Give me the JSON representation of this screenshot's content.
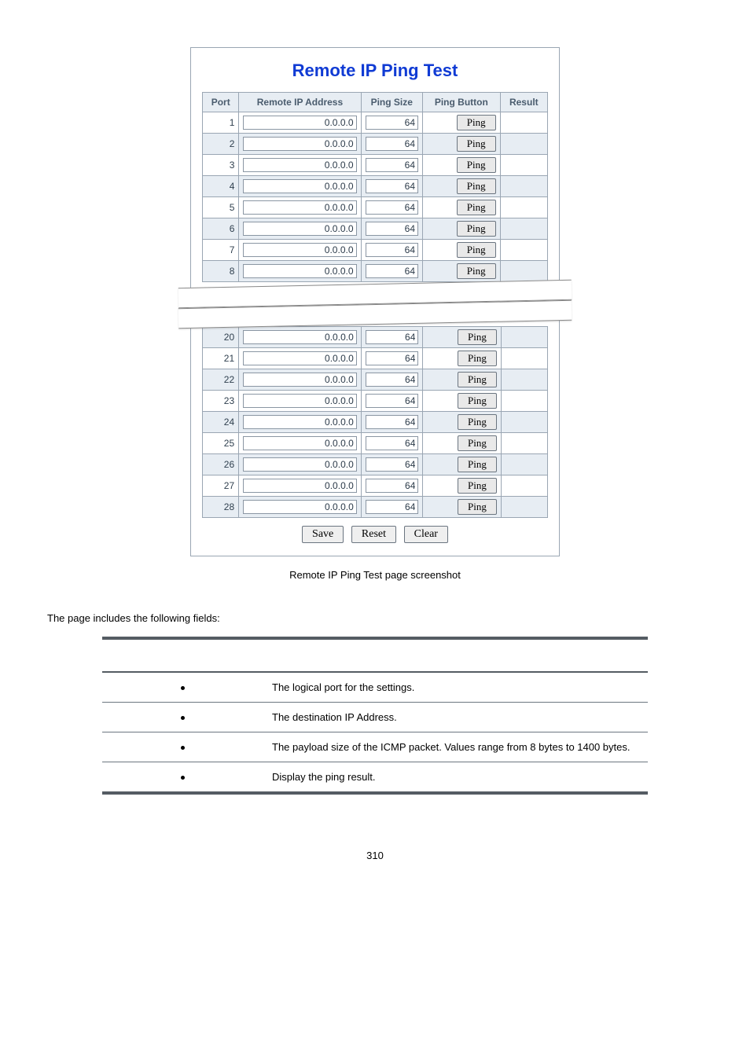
{
  "panel": {
    "title": "Remote IP Ping Test",
    "columns": [
      "Port",
      "Remote IP Address",
      "Ping Size",
      "Ping Button",
      "Result"
    ],
    "ping_label": "Ping",
    "rows_top": [
      {
        "port": "1",
        "ip": "0.0.0.0",
        "size": "64"
      },
      {
        "port": "2",
        "ip": "0.0.0.0",
        "size": "64"
      },
      {
        "port": "3",
        "ip": "0.0.0.0",
        "size": "64"
      },
      {
        "port": "4",
        "ip": "0.0.0.0",
        "size": "64"
      },
      {
        "port": "5",
        "ip": "0.0.0.0",
        "size": "64"
      },
      {
        "port": "6",
        "ip": "0.0.0.0",
        "size": "64"
      },
      {
        "port": "7",
        "ip": "0.0.0.0",
        "size": "64"
      },
      {
        "port": "8",
        "ip": "0.0.0.0",
        "size": "64"
      }
    ],
    "rows_bottom": [
      {
        "port": "20",
        "ip": "0.0.0.0",
        "size": "64"
      },
      {
        "port": "21",
        "ip": "0.0.0.0",
        "size": "64"
      },
      {
        "port": "22",
        "ip": "0.0.0.0",
        "size": "64"
      },
      {
        "port": "23",
        "ip": "0.0.0.0",
        "size": "64"
      },
      {
        "port": "24",
        "ip": "0.0.0.0",
        "size": "64"
      },
      {
        "port": "25",
        "ip": "0.0.0.0",
        "size": "64"
      },
      {
        "port": "26",
        "ip": "0.0.0.0",
        "size": "64"
      },
      {
        "port": "27",
        "ip": "0.0.0.0",
        "size": "64"
      },
      {
        "port": "28",
        "ip": "0.0.0.0",
        "size": "64"
      }
    ],
    "buttons": {
      "save": "Save",
      "reset": "Reset",
      "clear": "Clear"
    }
  },
  "caption": "Remote IP Ping Test page screenshot",
  "intro": "The page includes the following fields:",
  "fields": [
    {
      "desc": "The logical port for the settings."
    },
    {
      "desc": "The destination IP Address."
    },
    {
      "desc": "The payload size of the ICMP packet. Values range from 8 bytes to 1400 bytes."
    },
    {
      "desc": "Display the ping result."
    }
  ],
  "page_number": "310",
  "colors": {
    "title": "#103bd4",
    "header_bg": "#e7edf3",
    "row_even_bg": "#e7edf3",
    "row_odd_bg": "#ffffff",
    "border": "#9aa6b3",
    "fields_rule": "#555c63"
  }
}
